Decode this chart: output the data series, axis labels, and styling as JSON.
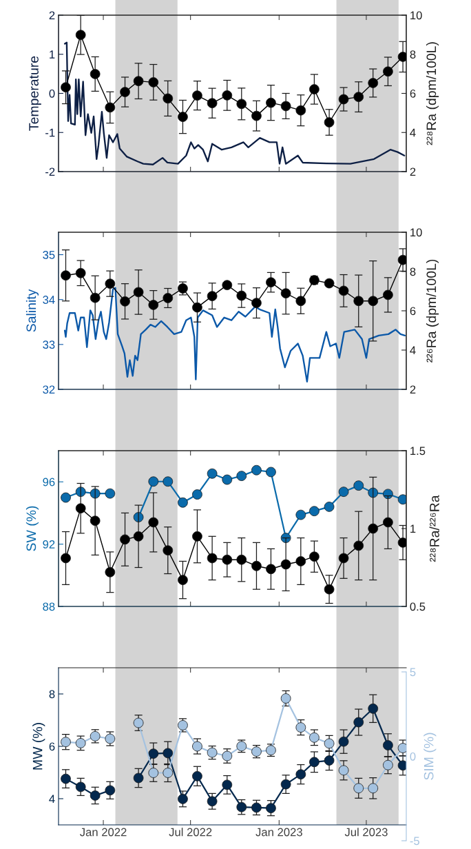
{
  "chart_data": [
    {
      "type": "line",
      "ylabel": "Temperature",
      "y2label": "²²⁸Ra (dpm/100L)",
      "x": [
        "2021-10-15",
        "2021-11-15",
        "2021-12-15",
        "2022-01-15",
        "2022-02-15",
        "2022-03-15",
        "2022-04-15",
        "2022-05-15",
        "2022-06-15",
        "2022-07-15",
        "2022-08-15",
        "2022-09-15",
        "2022-10-15",
        "2022-11-15",
        "2022-12-15",
        "2023-01-15",
        "2023-02-15",
        "2023-03-15",
        "2023-04-15",
        "2023-05-15",
        "2023-06-15",
        "2023-07-15",
        "2023-08-15",
        "2023-09-15"
      ],
      "xlim": [
        "2021-09-30",
        "2023-09-22"
      ],
      "xticks": [
        {
          "value": "2022-01-01",
          "label": null
        },
        {
          "value": "2022-07-01",
          "label": null
        },
        {
          "value": "2023-01-01",
          "label": null
        },
        {
          "value": "2023-07-01",
          "label": null
        }
      ],
      "ylim": [
        -2,
        2
      ],
      "yticks": [
        -2,
        -1,
        0,
        1,
        2
      ],
      "y2lim": [
        2,
        10
      ],
      "y2ticks": [
        2,
        4,
        6,
        8,
        10
      ],
      "tick_labels": "y",
      "bands": [
        {
          "axis": "x",
          "from": "2022-01-26",
          "to": "2022-06-04",
          "color": "#d3d3d3"
        },
        {
          "axis": "x",
          "from": "2023-04-30",
          "to": "2023-09-06",
          "color": "#d3d3d3"
        }
      ],
      "series": [
        {
          "color": "#0d1f44",
          "marker": "none",
          "x": [
            "2021-10-13",
            "2021-10-17",
            "2021-10-19",
            "2021-10-20",
            "2021-10-23",
            "2021-10-26",
            "2021-11-03",
            "2021-11-05",
            "2021-11-08",
            "2021-11-11",
            "2021-11-15",
            "2021-11-20",
            "2021-11-25",
            "2021-11-30",
            "2021-12-07",
            "2021-12-12",
            "2021-12-18",
            "2021-12-22",
            "2021-12-29",
            "2022-01-02",
            "2022-01-08",
            "2022-01-13",
            "2022-01-21",
            "2022-01-30",
            "2022-02-04",
            "2022-02-19",
            "2022-03-13",
            "2022-03-25",
            "2022-04-14",
            "2022-05-04",
            "2022-05-14",
            "2022-06-05",
            "2022-06-22",
            "2022-07-02",
            "2022-07-09",
            "2022-07-17",
            "2022-07-27",
            "2022-08-06",
            "2022-08-15",
            "2022-09-04",
            "2022-09-24",
            "2022-10-19",
            "2022-10-29",
            "2022-11-22",
            "2022-12-12",
            "2022-12-27",
            "2023-01-02",
            "2023-01-08",
            "2023-01-15",
            "2023-02-09",
            "2023-02-19",
            "2023-04-09",
            "2023-05-29",
            "2023-07-17",
            "2023-08-20",
            "2023-09-04",
            "2023-09-18"
          ],
          "values": [
            1.27,
            1.3,
            -0.04,
            -0.71,
            -0.04,
            -0.77,
            -0.8,
            0.36,
            -0.53,
            0.36,
            -0.59,
            0.3,
            -1.07,
            -0.53,
            -1.01,
            -0.59,
            -1.68,
            -1.32,
            -0.47,
            -1.01,
            -1.65,
            -1.07,
            -1.25,
            -1.04,
            -1.41,
            -1.62,
            -1.74,
            -1.8,
            -1.82,
            -1.65,
            -1.77,
            -1.8,
            -1.59,
            -1.25,
            -1.41,
            -1.32,
            -1.44,
            -1.74,
            -1.29,
            -1.44,
            -1.38,
            -1.25,
            -1.38,
            -1.14,
            -1.25,
            -1.25,
            -1.8,
            -1.38,
            -1.8,
            -1.59,
            -1.77,
            -1.79,
            -1.8,
            -1.68,
            -1.44,
            -1.5,
            -1.59
          ]
        },
        {
          "color": "#000000",
          "marker": "circle",
          "axis": "y2",
          "values": [
            6.31,
            8.99,
            6.99,
            5.28,
            6.07,
            6.63,
            6.57,
            5.74,
            4.8,
            5.89,
            5.5,
            5.9,
            5.46,
            4.85,
            5.52,
            5.35,
            5.13,
            6.21,
            4.52,
            5.7,
            5.82,
            6.53,
            7.12,
            7.87
          ],
          "errors": [
            0.84,
            1.0,
            0.88,
            0.8,
            0.76,
            0.91,
            0.91,
            0.9,
            0.85,
            0.74,
            0.76,
            0.77,
            0.81,
            0.77,
            0.9,
            0.65,
            0.79,
            0.76,
            0.66,
            0.6,
            0.77,
            0.72,
            0.73,
            0.78
          ]
        }
      ]
    },
    {
      "type": "line",
      "ylabel": "Salinity",
      "y2label": "²²⁶Ra (dpm/100L)",
      "x": [
        "2021-10-15",
        "2021-11-15",
        "2021-12-15",
        "2022-01-15",
        "2022-02-15",
        "2022-03-15",
        "2022-04-15",
        "2022-05-15",
        "2022-06-15",
        "2022-07-15",
        "2022-08-15",
        "2022-09-15",
        "2022-10-15",
        "2022-11-15",
        "2022-12-15",
        "2023-01-15",
        "2023-02-15",
        "2023-03-15",
        "2023-04-15",
        "2023-05-15",
        "2023-06-15",
        "2023-07-15",
        "2023-08-15",
        "2023-09-15"
      ],
      "xlim": [
        "2021-09-30",
        "2023-09-22"
      ],
      "xticks": [
        {
          "value": "2022-01-01",
          "label": null
        },
        {
          "value": "2022-07-01",
          "label": null
        },
        {
          "value": "2023-01-01",
          "label": null
        },
        {
          "value": "2023-07-01",
          "label": null
        }
      ],
      "ylim": [
        32,
        35.5
      ],
      "yticks": [
        32,
        33,
        34,
        35
      ],
      "y2lim": [
        2,
        10
      ],
      "y2ticks": [
        2,
        4,
        6,
        8,
        10
      ],
      "tick_labels": "y",
      "bands": [
        {
          "axis": "x",
          "from": "2022-01-26",
          "to": "2022-06-04",
          "color": "#d3d3d3"
        },
        {
          "axis": "x",
          "from": "2023-04-30",
          "to": "2023-09-06",
          "color": "#d3d3d3"
        }
      ],
      "series": [
        {
          "color": "#0b58a8",
          "marker": "none",
          "x": [
            "2021-10-13",
            "2021-10-15",
            "2021-10-18",
            "2021-10-23",
            "2021-11-03",
            "2021-11-10",
            "2021-11-15",
            "2021-11-22",
            "2021-11-28",
            "2021-12-05",
            "2021-12-10",
            "2021-12-16",
            "2021-12-22",
            "2021-12-27",
            "2022-01-02",
            "2022-01-07",
            "2022-01-13",
            "2022-01-21",
            "2022-01-26",
            "2022-01-31",
            "2022-02-09",
            "2022-02-14",
            "2022-02-20",
            "2022-02-25",
            "2022-03-03",
            "2022-03-08",
            "2022-03-13",
            "2022-03-20",
            "2022-03-30",
            "2022-04-09",
            "2022-04-19",
            "2022-05-01",
            "2022-05-14",
            "2022-05-28",
            "2022-06-12",
            "2022-06-22",
            "2022-07-02",
            "2022-07-09",
            "2022-07-12",
            "2022-07-16",
            "2022-07-27",
            "2022-08-15",
            "2022-08-25",
            "2022-09-09",
            "2022-09-24",
            "2022-10-09",
            "2022-10-23",
            "2022-11-12",
            "2022-11-22",
            "2022-12-12",
            "2022-12-17",
            "2022-12-24",
            "2022-12-29",
            "2023-01-03",
            "2023-01-13",
            "2023-01-25",
            "2023-02-09",
            "2023-02-19",
            "2023-02-28",
            "2023-03-06",
            "2023-03-26",
            "2023-04-09",
            "2023-04-17",
            "2023-04-29",
            "2023-05-06",
            "2023-05-16",
            "2023-06-07",
            "2023-06-22",
            "2023-07-01",
            "2023-07-07",
            "2023-07-27",
            "2023-08-16",
            "2023-08-31",
            "2023-09-10",
            "2023-09-19"
          ],
          "values": [
            33.31,
            33.17,
            33.47,
            33.7,
            33.7,
            33.31,
            33.6,
            33.6,
            32.94,
            33.76,
            33.65,
            33.12,
            33.54,
            33.73,
            33.28,
            33.12,
            33.49,
            34.23,
            34.26,
            33.23,
            32.96,
            32.8,
            32.28,
            32.65,
            32.3,
            32.75,
            32.65,
            33.23,
            33.33,
            33.44,
            33.39,
            33.52,
            33.39,
            33.23,
            33.28,
            33.54,
            33.6,
            33.17,
            32.22,
            33.6,
            33.76,
            33.65,
            33.39,
            33.6,
            33.54,
            33.73,
            33.62,
            33.84,
            33.78,
            33.7,
            33.17,
            33.78,
            33.39,
            32.91,
            32.49,
            32.86,
            33.02,
            32.75,
            32.17,
            32.7,
            32.7,
            33.28,
            32.96,
            33.02,
            32.7,
            33.28,
            33.33,
            33.12,
            32.7,
            33.12,
            33.2,
            33.23,
            33.33,
            33.23,
            33.2
          ]
        },
        {
          "color": "#000000",
          "marker": "circle",
          "axis": "y2",
          "values": [
            7.8,
            7.92,
            6.66,
            7.38,
            6.48,
            6.95,
            6.3,
            6.65,
            7.14,
            6.17,
            6.75,
            7.31,
            6.77,
            6.4,
            7.45,
            6.89,
            6.5,
            7.56,
            7.4,
            7.02,
            6.5,
            6.5,
            6.81,
            8.59
          ],
          "errors": [
            1.3,
            0.64,
            1.12,
            0.65,
            0.9,
            1.13,
            0.73,
            0.49,
            0.33,
            0.74,
            0.66,
            0.1,
            0.6,
            0.77,
            0.5,
            1.06,
            0.65,
            0.2,
            0.1,
            0.82,
            1.32,
            2.04,
            0.88,
            0.57
          ]
        }
      ]
    },
    {
      "type": "line",
      "ylabel": "SW (%)",
      "y2label": "²²⁸Ra/²²⁶Ra",
      "x": [
        "2021-10-15",
        "2021-11-15",
        "2021-12-15",
        "2022-01-15",
        "2022-02-15",
        "2022-03-15",
        "2022-04-15",
        "2022-05-15",
        "2022-06-15",
        "2022-07-15",
        "2022-08-15",
        "2022-09-15",
        "2022-10-15",
        "2022-11-15",
        "2022-12-15",
        "2023-01-15",
        "2023-02-15",
        "2023-03-15",
        "2023-04-15",
        "2023-05-15",
        "2023-06-15",
        "2023-07-15",
        "2023-08-15",
        "2023-09-15"
      ],
      "xlim": [
        "2021-09-30",
        "2023-09-22"
      ],
      "xticks": [
        {
          "value": "2022-01-01",
          "label": null
        },
        {
          "value": "2022-07-01",
          "label": null
        },
        {
          "value": "2023-01-01",
          "label": null
        },
        {
          "value": "2023-07-01",
          "label": null
        }
      ],
      "ylim": [
        88,
        98
      ],
      "yticks": [
        88,
        92,
        96
      ],
      "y2lim": [
        0.5,
        1.5
      ],
      "y2ticks": [
        0.5,
        1,
        1.5
      ],
      "tick_labels": "y",
      "bands": [
        {
          "axis": "x",
          "from": "2022-01-26",
          "to": "2022-06-04",
          "color": "#d3d3d3"
        },
        {
          "axis": "x",
          "from": "2023-04-30",
          "to": "2023-09-06",
          "color": "#d3d3d3"
        }
      ],
      "series": [
        {
          "color": "#0b6bab",
          "marker": "circle",
          "values": [
            94.99,
            95.36,
            95.25,
            95.25,
            null,
            93.73,
            96.02,
            96.02,
            94.67,
            95.19,
            96.53,
            96.14,
            96.38,
            96.75,
            96.63,
            92.4,
            93.88,
            94.12,
            94.4,
            95.36,
            95.76,
            95.3,
            95.22,
            94.87
          ]
        },
        {
          "color": "#000000",
          "marker": "circle",
          "axis": "y2",
          "values": [
            0.81,
            1.13,
            1.05,
            0.72,
            0.93,
            0.95,
            1.04,
            0.86,
            0.67,
            0.95,
            0.81,
            0.8,
            0.8,
            0.76,
            0.74,
            0.77,
            0.79,
            0.82,
            0.61,
            0.81,
            0.89,
            1.0,
            1.04,
            0.91
          ],
          "errors": [
            0.17,
            0.16,
            0.22,
            0.13,
            0.17,
            0.2,
            0.19,
            0.15,
            0.12,
            0.17,
            0.14,
            0.11,
            0.14,
            0.15,
            0.13,
            0.17,
            0.15,
            0.1,
            0.09,
            0.13,
            0.22,
            0.33,
            0.17,
            0.11
          ]
        }
      ]
    },
    {
      "type": "line",
      "ylabel": "MW (%)",
      "y2label": "SIM (%)",
      "x": [
        "2021-10-15",
        "2021-11-15",
        "2021-12-15",
        "2022-01-15",
        "2022-02-15",
        "2022-03-15",
        "2022-04-15",
        "2022-05-15",
        "2022-06-15",
        "2022-07-15",
        "2022-08-15",
        "2022-09-15",
        "2022-10-15",
        "2022-11-15",
        "2022-12-15",
        "2023-01-15",
        "2023-02-15",
        "2023-03-15",
        "2023-04-15",
        "2023-05-15",
        "2023-06-15",
        "2023-07-15",
        "2023-08-15",
        "2023-09-15"
      ],
      "xlim": [
        "2021-09-30",
        "2023-09-22"
      ],
      "xticks": [
        {
          "value": "2022-01-01",
          "label": "Jan 2022"
        },
        {
          "value": "2022-07-01",
          "label": "Jul 2022"
        },
        {
          "value": "2023-01-01",
          "label": "Jan 2023"
        },
        {
          "value": "2023-07-01",
          "label": "Jul 2023"
        }
      ],
      "ylim": [
        3,
        9
      ],
      "yticks": [
        4,
        6,
        8
      ],
      "y2lim": [
        -5,
        5
      ],
      "y2ticks": [
        -5,
        0,
        5
      ],
      "bands": [
        {
          "axis": "x",
          "from": "2022-01-26",
          "to": "2022-06-04",
          "color": "#d3d3d3"
        },
        {
          "axis": "x",
          "from": "2023-04-30",
          "to": "2023-09-06",
          "color": "#d3d3d3"
        }
      ],
      "series": [
        {
          "color": "#04284d",
          "marker": "circle",
          "values": [
            4.76,
            4.45,
            4.12,
            4.32,
            null,
            4.79,
            5.72,
            5.74,
            3.99,
            4.86,
            3.9,
            4.53,
            3.68,
            3.66,
            3.64,
            4.55,
            4.93,
            5.4,
            5.46,
            6.18,
            6.92,
            7.44,
            6.04,
            5.27
          ],
          "errors": [
            0.35,
            0.33,
            0.32,
            0.33,
            null,
            0.36,
            0.41,
            0.44,
            0.3,
            0.37,
            0.3,
            0.35,
            0.28,
            0.28,
            0.29,
            0.35,
            0.37,
            0.39,
            0.37,
            0.45,
            0.5,
            0.53,
            0.44,
            0.37
          ]
        },
        {
          "color": "#a4c2e0",
          "marker": "circle",
          "axis": "y2",
          "values": [
            0.85,
            0.78,
            1.19,
            1.04,
            null,
            1.98,
            -0.98,
            -0.98,
            1.84,
            0.59,
            0.22,
            0.02,
            0.6,
            0.28,
            0.36,
            3.43,
            1.71,
            1.11,
            0.76,
            -0.83,
            -1.89,
            -1.89,
            -0.52,
            0.49
          ],
          "errors": [
            0.45,
            0.42,
            0.39,
            0.41,
            null,
            0.46,
            0.52,
            0.53,
            0.39,
            0.45,
            0.39,
            0.42,
            0.36,
            0.37,
            0.36,
            0.45,
            0.45,
            0.46,
            0.47,
            0.57,
            0.59,
            0.62,
            0.51,
            0.47
          ]
        }
      ]
    }
  ]
}
